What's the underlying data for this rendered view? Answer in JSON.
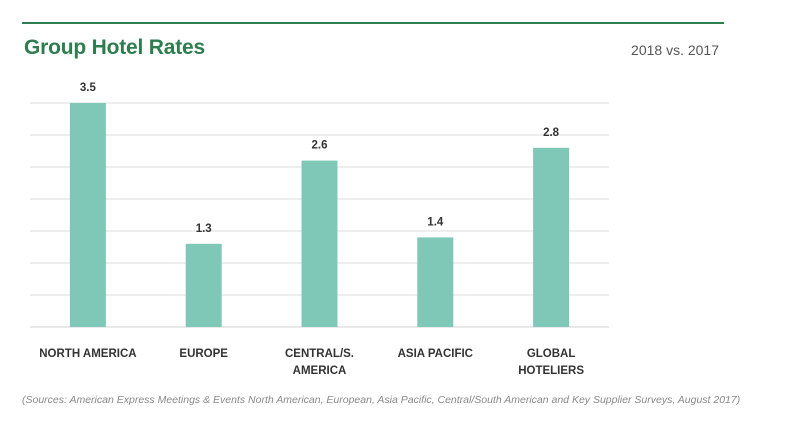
{
  "header": {
    "title": "Group Hotel Rates",
    "subtitle": "2018 vs. 2017"
  },
  "chart_data": {
    "type": "bar",
    "categories": [
      [
        "NORTH AMERICA"
      ],
      [
        "EUROPE"
      ],
      [
        "CENTRAL/S.",
        "AMERICA"
      ],
      [
        "ASIA PACIFIC"
      ],
      [
        "GLOBAL",
        "HOTELIERS"
      ]
    ],
    "values": [
      3.5,
      1.3,
      2.6,
      1.4,
      2.8
    ],
    "data_labels": [
      "3.5",
      "1.3",
      "2.6",
      "1.4",
      "2.8"
    ],
    "ylim": [
      0,
      3.5
    ],
    "grid": true,
    "gridline_count": 8,
    "bar_color": "#7fc8b8",
    "grid_color": "#dcdcdc",
    "label_color": "#333333"
  },
  "footer": {
    "source": "(Sources: American Express Meetings & Events North American, European, Asia Pacific, Central/South American and Key Supplier Surveys, August 2017)"
  },
  "colors": {
    "accent": "#2e7d4f"
  }
}
